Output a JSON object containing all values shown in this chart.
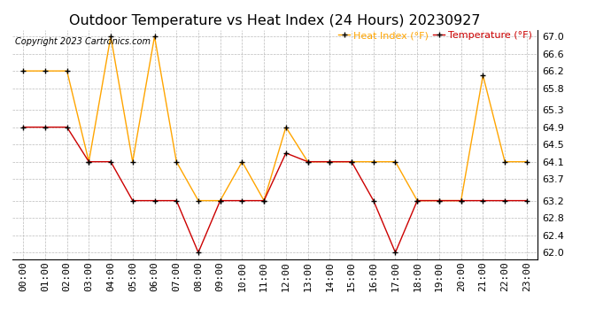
{
  "title": "Outdoor Temperature vs Heat Index (24 Hours) 20230927",
  "copyright": "Copyright 2023 Cartronics.com",
  "legend_heat": "Heat Index (°F)",
  "legend_temp": "Temperature (°F)",
  "hours": [
    "00:00",
    "01:00",
    "02:00",
    "03:00",
    "04:00",
    "05:00",
    "06:00",
    "07:00",
    "08:00",
    "09:00",
    "10:00",
    "11:00",
    "12:00",
    "13:00",
    "14:00",
    "15:00",
    "16:00",
    "17:00",
    "18:00",
    "19:00",
    "20:00",
    "21:00",
    "22:00",
    "23:00"
  ],
  "heat_index": [
    66.2,
    66.2,
    66.2,
    64.1,
    67.0,
    64.1,
    67.0,
    64.1,
    63.2,
    63.2,
    64.1,
    63.2,
    64.9,
    64.1,
    64.1,
    64.1,
    64.1,
    64.1,
    63.2,
    63.2,
    63.2,
    66.1,
    64.1,
    64.1
  ],
  "temperature": [
    64.9,
    64.9,
    64.9,
    64.1,
    64.1,
    63.2,
    63.2,
    63.2,
    62.0,
    63.2,
    63.2,
    63.2,
    64.3,
    64.1,
    64.1,
    64.1,
    63.2,
    62.0,
    63.2,
    63.2,
    63.2,
    63.2,
    63.2,
    63.2
  ],
  "heat_color": "#FFA500",
  "temp_color": "#CC0000",
  "marker_color": "#000000",
  "ylim_min": 61.85,
  "ylim_max": 67.15,
  "yticks": [
    62.0,
    62.4,
    62.8,
    63.2,
    63.7,
    64.1,
    64.5,
    64.9,
    65.3,
    65.8,
    66.2,
    66.6,
    67.0
  ],
  "background_color": "#ffffff",
  "grid_color": "#bbbbbb",
  "title_fontsize": 11.5,
  "axis_fontsize": 8,
  "copyright_fontsize": 7,
  "legend_fontsize": 8,
  "linewidth": 1.0,
  "markersize": 4,
  "marker": "+"
}
